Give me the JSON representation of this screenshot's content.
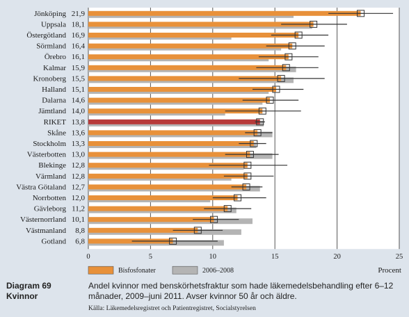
{
  "chart_data": {
    "type": "bar",
    "categories": [
      "Jönköping",
      "Uppsala",
      "Östergötland",
      "Sörmland",
      "Örebro",
      "Kalmar",
      "Kronoberg",
      "Halland",
      "Dalarna",
      "Jämtland",
      "RIKET",
      "Skåne",
      "Stockholm",
      "Västerbotten",
      "Blekinge",
      "Värmland",
      "Västra Götaland",
      "Norrbotten",
      "Gävleborg",
      "Västernorrland",
      "Västmanland",
      "Gotland"
    ],
    "value_labels": [
      "21,9",
      "18,1",
      "16,9",
      "16,4",
      "16,1",
      "15,9",
      "15,5",
      "15,1",
      "14,6",
      "14,0",
      "13,8",
      "13,6",
      "13,3",
      "13,0",
      "12,8",
      "12,8",
      "12,7",
      "12,0",
      "11,2",
      "10,1",
      "8,8",
      "6,8"
    ],
    "series": [
      {
        "name": "Bisfosfonater",
        "color": "#e8913a",
        "values": [
          21.9,
          18.1,
          16.9,
          16.4,
          16.1,
          15.9,
          15.5,
          15.1,
          14.6,
          14.0,
          13.8,
          13.6,
          13.3,
          13.0,
          12.8,
          12.8,
          12.7,
          12.0,
          11.2,
          10.1,
          8.8,
          6.8
        ]
      },
      {
        "name": "2006–2008",
        "color": "#b4b4b4",
        "values": [
          16.5,
          18.0,
          11.5,
          15.5,
          14.5,
          16.7,
          16.5,
          14.5,
          14.0,
          11.0,
          14.1,
          14.8,
          13.5,
          14.8,
          12.5,
          11.5,
          13.8,
          9.8,
          11.9,
          13.2,
          12.3,
          10.9
        ]
      }
    ],
    "error_bars": [
      [
        19.3,
        24.5
      ],
      [
        15.5,
        20.8
      ],
      [
        14.7,
        19.3
      ],
      [
        14.3,
        19.0
      ],
      [
        13.7,
        18.5
      ],
      [
        13.5,
        18.5
      ],
      [
        12.1,
        19.0
      ],
      [
        13.2,
        17.3
      ],
      [
        12.4,
        16.9
      ],
      [
        11.0,
        17.1
      ],
      [
        13.4,
        14.2
      ],
      [
        12.6,
        14.8
      ],
      [
        12.1,
        14.3
      ],
      [
        11.0,
        15.3
      ],
      [
        9.7,
        16.0
      ],
      [
        10.9,
        14.9
      ],
      [
        11.5,
        14.0
      ],
      [
        10.0,
        14.3
      ],
      [
        9.3,
        13.1
      ],
      [
        8.4,
        12.1
      ],
      [
        6.8,
        10.8
      ],
      [
        3.5,
        10.4
      ]
    ],
    "highlight": {
      "category": "RIKET",
      "color": "#b73a3a"
    },
    "xticks": [
      "0",
      "5",
      "10",
      "15",
      "20",
      "25"
    ],
    "xlim": [
      0,
      25
    ],
    "xlabel": "Procent",
    "grid": true
  },
  "caption": {
    "label_line1": "Diagram 69",
    "label_line2": "Kvinnor",
    "text": "Andel kvinnor med benskörhetsfraktur som hade läkemedelsbehandling efter 6–12 månader, 2009–juni 2011. Avser kvinnor 50 år och äldre.",
    "source": "Källa: Läkemedelsregistret och Patientregistret, Socialstyrelsen"
  }
}
